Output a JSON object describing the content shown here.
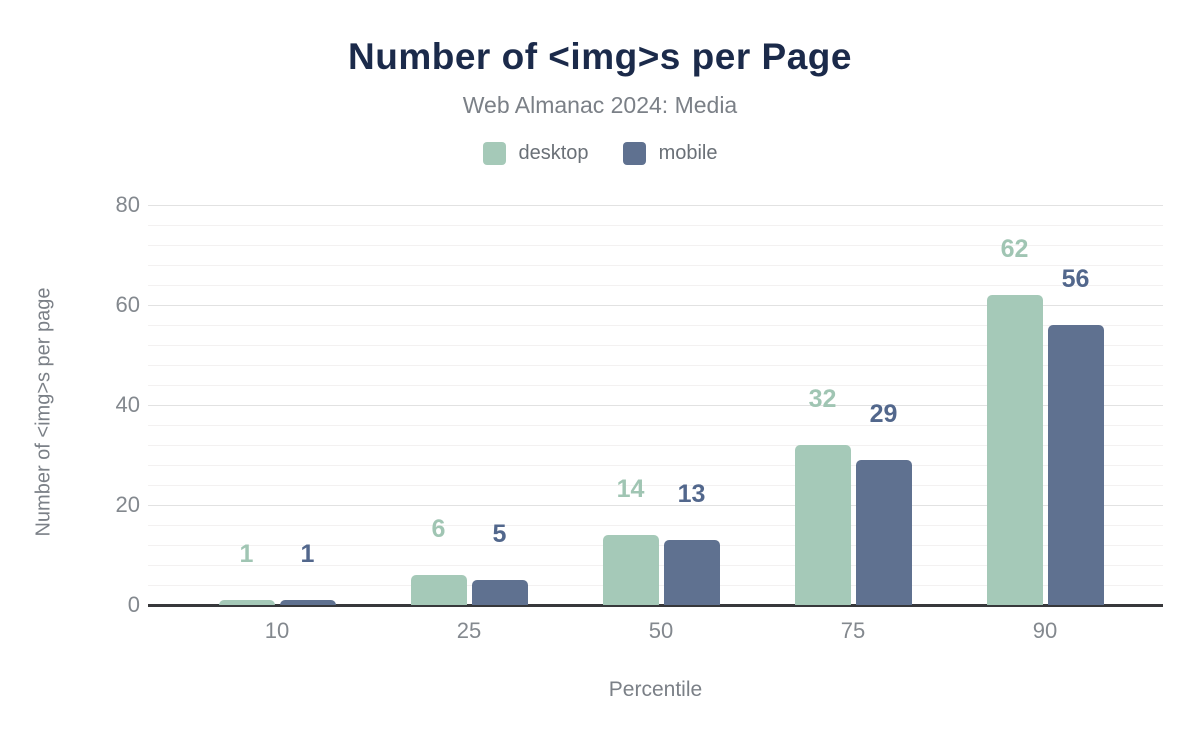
{
  "chart_data": {
    "type": "bar",
    "title": "Number of <img>s per Page",
    "subtitle": "Web Almanac 2024: Media",
    "xlabel": "Percentile",
    "ylabel": "Number of <img>s per page",
    "categories": [
      "10",
      "25",
      "50",
      "75",
      "90"
    ],
    "series": [
      {
        "name": "desktop",
        "color": "#a5c9b8",
        "label_color": "#a0c5b3",
        "values": [
          1,
          6,
          14,
          32,
          62
        ]
      },
      {
        "name": "mobile",
        "color": "#5f7190",
        "label_color": "#52678c",
        "values": [
          1,
          5,
          13,
          29,
          56
        ]
      }
    ],
    "ylim": [
      0,
      80
    ],
    "yticks": [
      0,
      20,
      40,
      60,
      80
    ],
    "minor_unit": 4,
    "grid": "horizontal-major-and-minor",
    "legend_position": "top",
    "colors": {
      "title": "#1b2a4a",
      "subtitle": "#7b8087",
      "tick_label": "#83888e",
      "axis_title": "#7b8087",
      "legend_label": "#6a7077",
      "axis_line": "#37383b",
      "major_grid": "#e2e2e2",
      "minor_grid": "#f3f1f1",
      "background": "#ffffff"
    }
  }
}
